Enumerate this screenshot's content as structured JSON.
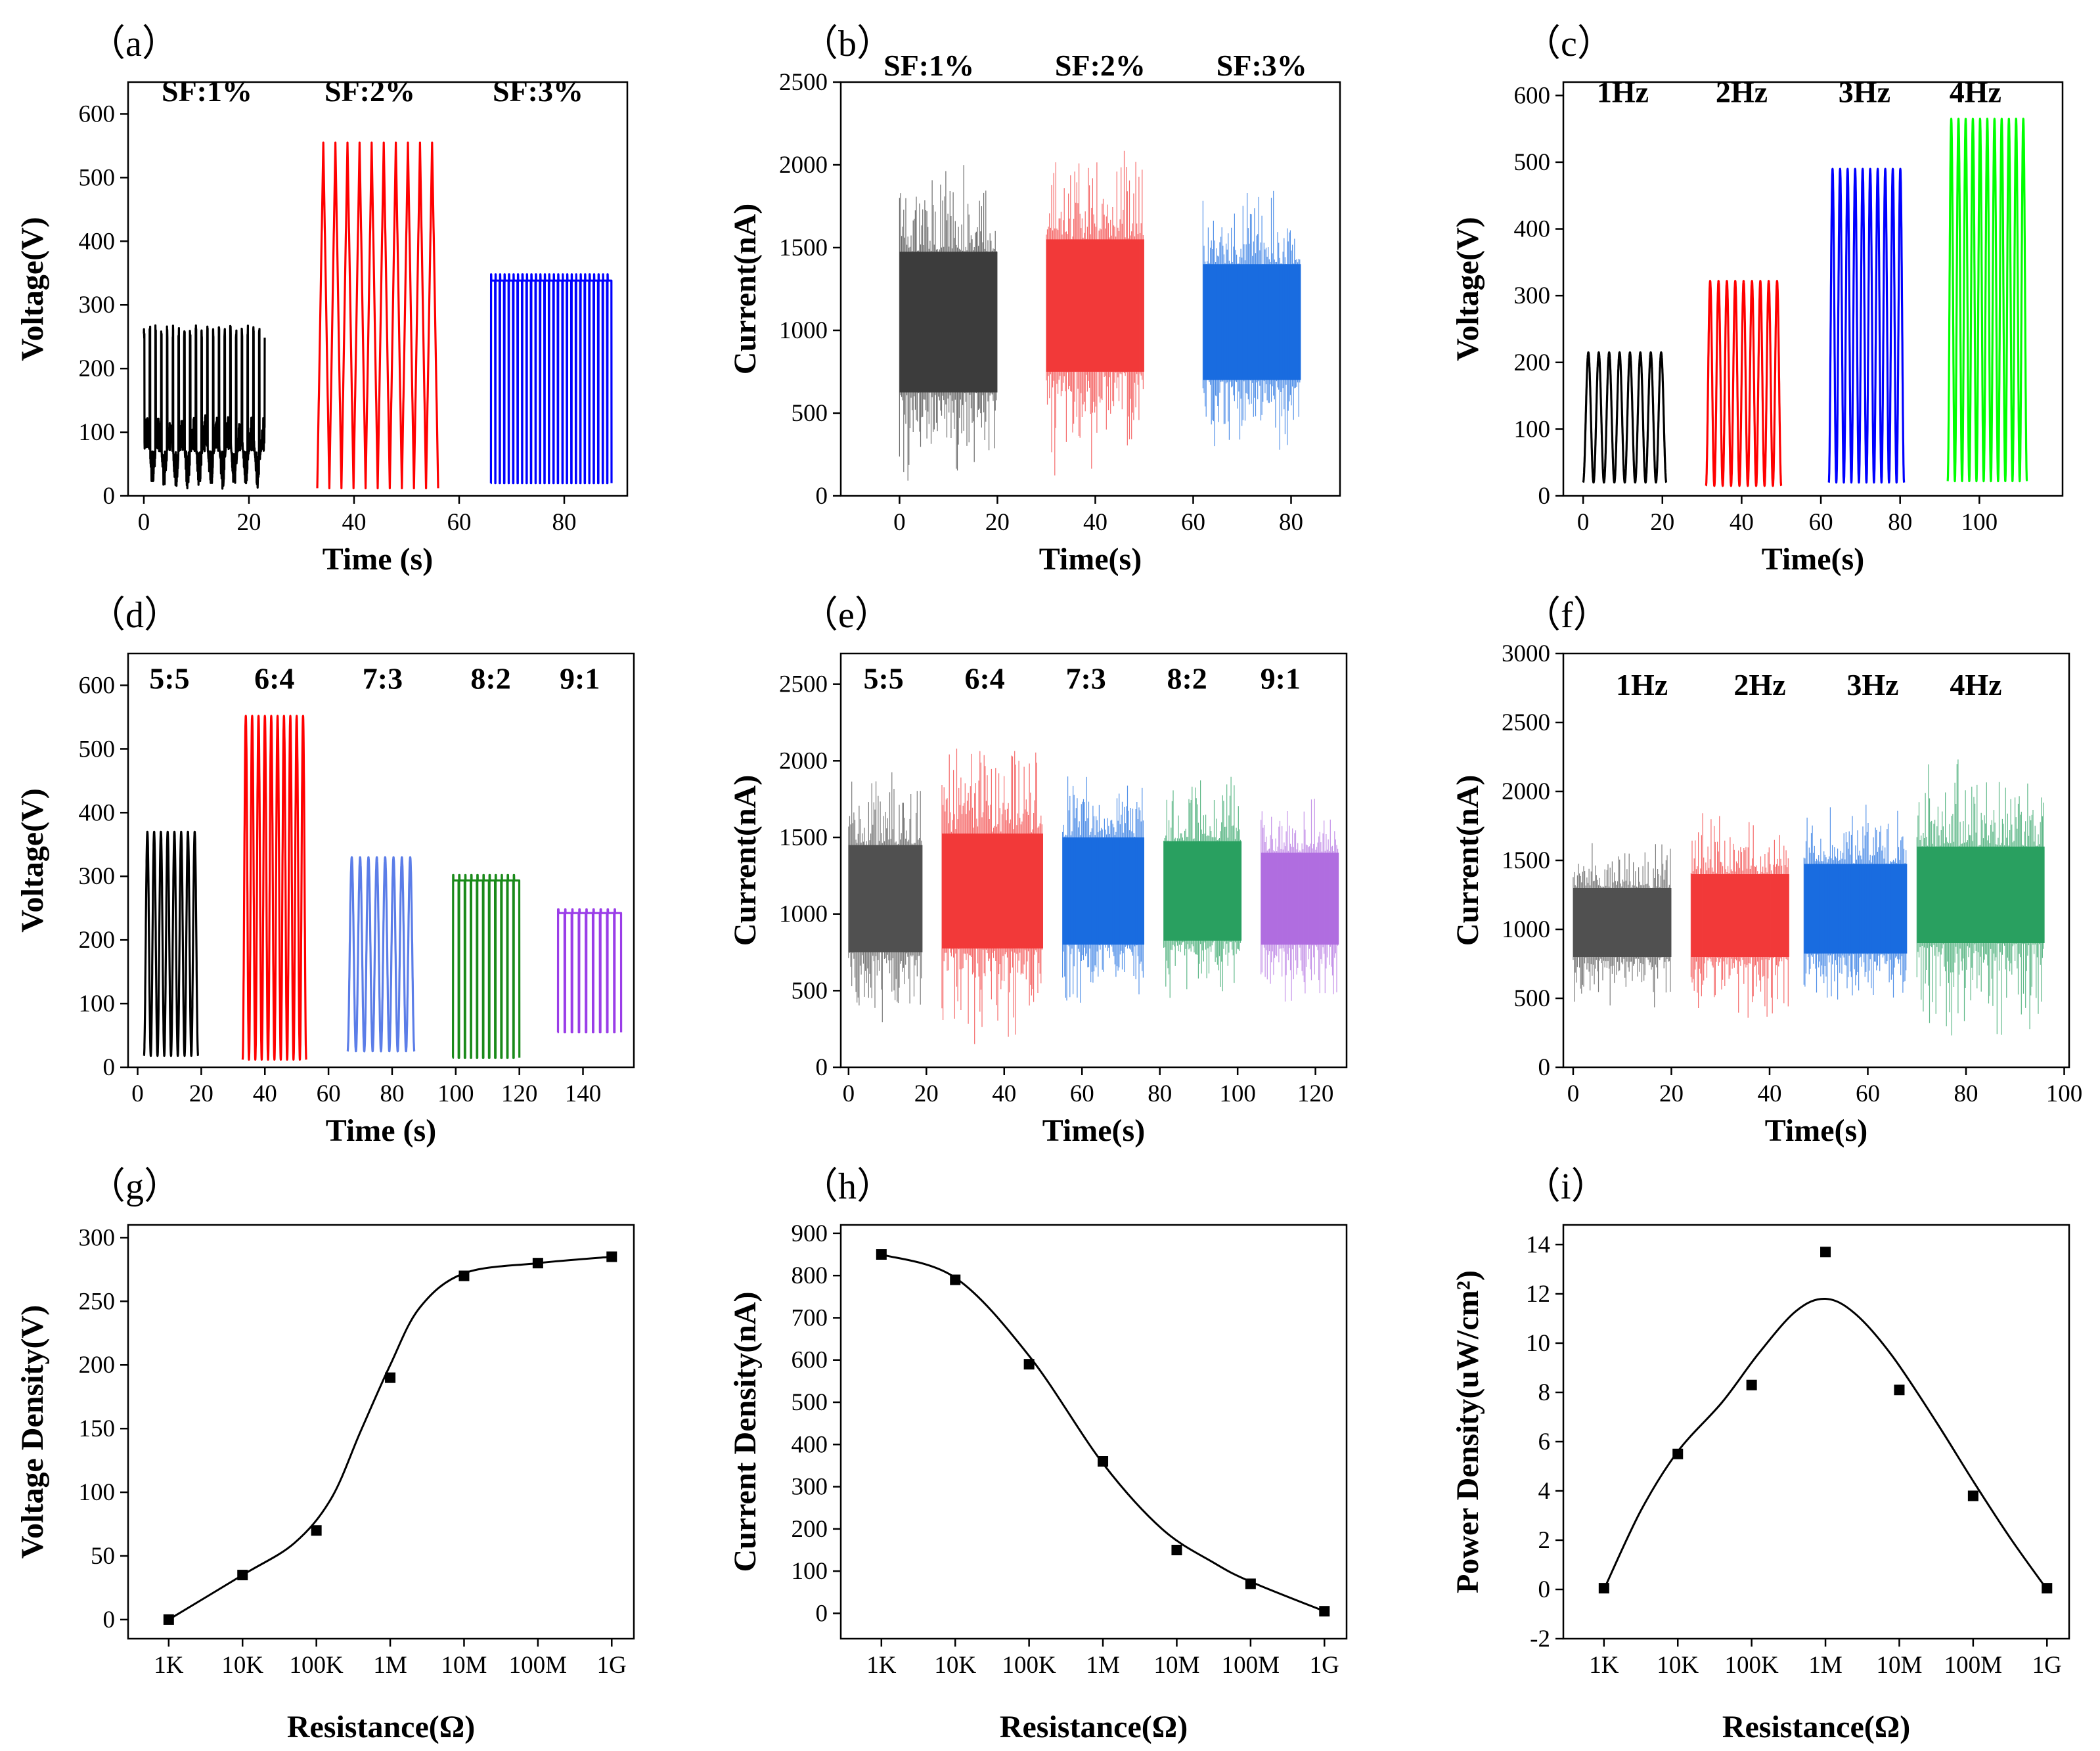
{
  "figure": {
    "panel_count": 9
  },
  "chart_data": [
    {
      "id": "a",
      "panel_label": "（a）",
      "type": "line",
      "xlabel": "Time (s)",
      "ylabel": "Voltage(V)",
      "xlim": [
        -3,
        92
      ],
      "ylim": [
        0,
        650
      ],
      "xticks": [
        0,
        20,
        40,
        60,
        80
      ],
      "yticks": [
        0,
        100,
        200,
        300,
        400,
        500,
        600
      ],
      "annotations": [
        {
          "text": "SF:1%",
          "x": 12,
          "y": 620
        },
        {
          "text": "SF:2%",
          "x": 43,
          "y": 620
        },
        {
          "text": "SF:3%",
          "x": 75,
          "y": 620
        }
      ],
      "series": [
        {
          "name": "SF:1%",
          "color": "#000000",
          "x_start": 0,
          "x_end": 23,
          "peak": 268,
          "base": 30,
          "cycles": 21,
          "style": "noisy_pulse"
        },
        {
          "name": "SF:2%",
          "color": "#ff0000",
          "x_start": 33,
          "x_end": 56,
          "peak": 555,
          "base": 12,
          "cycles": 10,
          "style": "triangle"
        },
        {
          "name": "SF:3%",
          "color": "#0000ff",
          "x_start": 66,
          "x_end": 89,
          "peak": 348,
          "base": 20,
          "cycles": 27,
          "style": "pulse"
        }
      ]
    },
    {
      "id": "b",
      "panel_label": "（b）",
      "type": "line",
      "xlabel": "Time(s)",
      "ylabel": "Current(nA)",
      "xlim": [
        -12,
        90
      ],
      "ylim": [
        0,
        2500
      ],
      "xticks": [
        0,
        20,
        40,
        60,
        80
      ],
      "yticks": [
        0,
        500,
        1000,
        1500,
        2000,
        2500
      ],
      "annotations": [
        {
          "text": "SF:1%",
          "x": 6,
          "y": 2540
        },
        {
          "text": "SF:2%",
          "x": 41,
          "y": 2540
        },
        {
          "text": "SF:3%",
          "x": 74,
          "y": 2540
        }
      ],
      "series": [
        {
          "name": "SF:1%",
          "color": "#3c3c3c",
          "x_start": 0,
          "x_end": 20,
          "center": 1050,
          "core": 850,
          "spike": 1000
        },
        {
          "name": "SF:2%",
          "color": "#f23a3a",
          "x_start": 30,
          "x_end": 50,
          "center": 1150,
          "core": 800,
          "spike": 1050
        },
        {
          "name": "SF:3%",
          "color": "#1a6ce0",
          "x_start": 62,
          "x_end": 82,
          "center": 1050,
          "core": 700,
          "spike": 850
        }
      ]
    },
    {
      "id": "c",
      "panel_label": "（c）",
      "type": "line",
      "xlabel": "Time(s)",
      "ylabel": "Voltage(V)",
      "xlim": [
        -5,
        121
      ],
      "ylim": [
        0,
        620
      ],
      "xticks": [
        0,
        20,
        40,
        60,
        80,
        100
      ],
      "yticks": [
        0,
        100,
        200,
        300,
        400,
        500,
        600
      ],
      "annotations": [
        {
          "text": "1Hz",
          "x": 10,
          "y": 590
        },
        {
          "text": "2Hz",
          "x": 40,
          "y": 590
        },
        {
          "text": "3Hz",
          "x": 71,
          "y": 590
        },
        {
          "text": "4Hz",
          "x": 99,
          "y": 590
        }
      ],
      "series": [
        {
          "name": "1Hz",
          "color": "#000000",
          "x_start": 0,
          "x_end": 21,
          "peak": 215,
          "base": 20,
          "cycles": 8,
          "style": "sine"
        },
        {
          "name": "2Hz",
          "color": "#ff0000",
          "x_start": 31,
          "x_end": 50,
          "peak": 322,
          "base": 15,
          "cycles": 9,
          "style": "sine"
        },
        {
          "name": "3Hz",
          "color": "#0000ff",
          "x_start": 62,
          "x_end": 81,
          "peak": 490,
          "base": 20,
          "cycles": 10,
          "style": "sine"
        },
        {
          "name": "4Hz",
          "color": "#00ff00",
          "x_start": 92,
          "x_end": 112,
          "peak": 565,
          "base": 22,
          "cycles": 11,
          "style": "sine"
        }
      ]
    },
    {
      "id": "d",
      "panel_label": "（d）",
      "type": "line",
      "xlabel": "Time (s)",
      "ylabel": "Voltage(V)",
      "xlim": [
        -3,
        156
      ],
      "ylim": [
        0,
        650
      ],
      "xticks": [
        0,
        20,
        40,
        60,
        80,
        100,
        120,
        140
      ],
      "yticks": [
        0,
        100,
        200,
        300,
        400,
        500,
        600
      ],
      "annotations": [
        {
          "text": "5:5",
          "x": 10,
          "y": 595
        },
        {
          "text": "6:4",
          "x": 43,
          "y": 595
        },
        {
          "text": "7:3",
          "x": 77,
          "y": 595
        },
        {
          "text": "8:2",
          "x": 111,
          "y": 595
        },
        {
          "text": "9:1",
          "x": 139,
          "y": 595
        }
      ],
      "series": [
        {
          "name": "5:5",
          "color": "#000000",
          "x_start": 2,
          "x_end": 19,
          "peak": 370,
          "base": 18,
          "cycles": 8,
          "style": "sine"
        },
        {
          "name": "6:4",
          "color": "#ff0000",
          "x_start": 33,
          "x_end": 53,
          "peak": 552,
          "base": 12,
          "cycles": 10,
          "style": "sine"
        },
        {
          "name": "7:3",
          "color": "#5b7de8",
          "x_start": 66,
          "x_end": 87,
          "peak": 330,
          "base": 25,
          "cycles": 8,
          "style": "sine"
        },
        {
          "name": "8:2",
          "color": "#1a8a1a",
          "x_start": 99,
          "x_end": 120,
          "peak": 302,
          "base": 15,
          "cycles": 11,
          "style": "pulse"
        },
        {
          "name": "9:1",
          "color": "#9a3de8",
          "x_start": 132,
          "x_end": 152,
          "peak": 248,
          "base": 55,
          "cycles": 9,
          "style": "pulse"
        }
      ]
    },
    {
      "id": "e",
      "panel_label": "（e）",
      "type": "line",
      "xlabel": "Time(s)",
      "ylabel": "Current(nA)",
      "xlim": [
        -2,
        128
      ],
      "ylim": [
        0,
        2700
      ],
      "xticks": [
        0,
        20,
        40,
        60,
        80,
        100,
        120
      ],
      "yticks": [
        0,
        500,
        1000,
        1500,
        2000,
        2500
      ],
      "annotations": [
        {
          "text": "5:5",
          "x": 9,
          "y": 2470
        },
        {
          "text": "6:4",
          "x": 35,
          "y": 2470
        },
        {
          "text": "7:3",
          "x": 61,
          "y": 2470
        },
        {
          "text": "8:2",
          "x": 87,
          "y": 2470
        },
        {
          "text": "9:1",
          "x": 111,
          "y": 2470
        }
      ],
      "series": [
        {
          "name": "5:5",
          "color": "#505050",
          "x_start": 0,
          "x_end": 19,
          "center": 1100,
          "core": 700,
          "spike": 900
        },
        {
          "name": "6:4",
          "color": "#f23a3a",
          "x_start": 24,
          "x_end": 50,
          "center": 1150,
          "core": 750,
          "spike": 1050
        },
        {
          "name": "7:3",
          "color": "#1a6ce0",
          "x_start": 55,
          "x_end": 76,
          "center": 1150,
          "core": 700,
          "spike": 800
        },
        {
          "name": "8:2",
          "color": "#2aa060",
          "x_start": 81,
          "x_end": 101,
          "center": 1150,
          "core": 650,
          "spike": 800
        },
        {
          "name": "9:1",
          "color": "#b06ee0",
          "x_start": 106,
          "x_end": 126,
          "center": 1100,
          "core": 600,
          "spike": 700
        }
      ]
    },
    {
      "id": "f",
      "panel_label": "（f）",
      "type": "line",
      "xlabel": "Time(s)",
      "ylabel": "Current(nA)",
      "xlim": [
        -2,
        101
      ],
      "ylim": [
        0,
        3000
      ],
      "xticks": [
        0,
        20,
        40,
        60,
        80,
        100
      ],
      "yticks": [
        0,
        500,
        1000,
        1500,
        2000,
        2500,
        3000
      ],
      "annotations": [
        {
          "text": "1Hz",
          "x": 14,
          "y": 2700
        },
        {
          "text": "2Hz",
          "x": 38,
          "y": 2700
        },
        {
          "text": "3Hz",
          "x": 61,
          "y": 2700
        },
        {
          "text": "4Hz",
          "x": 82,
          "y": 2700
        }
      ],
      "series": [
        {
          "name": "1Hz",
          "color": "#505050",
          "x_start": 0,
          "x_end": 20,
          "center": 1050,
          "core": 500,
          "spike": 650
        },
        {
          "name": "2Hz",
          "color": "#f23a3a",
          "x_start": 24,
          "x_end": 44,
          "center": 1100,
          "core": 600,
          "spike": 800
        },
        {
          "name": "3Hz",
          "color": "#1a6ce0",
          "x_start": 47,
          "x_end": 68,
          "center": 1150,
          "core": 650,
          "spike": 800
        },
        {
          "name": "4Hz",
          "color": "#2aa060",
          "x_start": 70,
          "x_end": 96,
          "center": 1250,
          "core": 700,
          "spike": 1100
        }
      ]
    },
    {
      "id": "g",
      "panel_label": "（g）",
      "type": "scatter",
      "xlabel": "Resistance(Ω)",
      "ylabel": "Voltage Density(V)",
      "categories": [
        "1K",
        "10K",
        "100K",
        "1M",
        "10M",
        "100M",
        "1G"
      ],
      "values": [
        0,
        35,
        70,
        190,
        270,
        280,
        285
      ],
      "fit": [
        [
          0,
          0
        ],
        [
          1,
          35
        ],
        [
          1.7,
          60
        ],
        [
          2.2,
          95
        ],
        [
          2.6,
          148
        ],
        [
          3,
          200
        ],
        [
          3.4,
          245
        ],
        [
          4,
          272
        ],
        [
          5,
          280
        ],
        [
          6,
          285
        ]
      ],
      "xlim": [
        -0.55,
        6.3
      ],
      "ylim": [
        -15,
        310
      ],
      "yticks": [
        0,
        50,
        100,
        150,
        200,
        250,
        300
      ]
    },
    {
      "id": "h",
      "panel_label": "（h）",
      "type": "scatter",
      "xlabel": "Resistance(Ω)",
      "ylabel": "Current Density(nA)",
      "categories": [
        "1K",
        "10K",
        "100K",
        "1M",
        "10M",
        "100M",
        "1G"
      ],
      "values": [
        850,
        790,
        590,
        360,
        150,
        70,
        5
      ],
      "fit": [
        [
          0,
          850
        ],
        [
          1,
          795
        ],
        [
          2,
          610
        ],
        [
          3,
          355
        ],
        [
          3.8,
          200
        ],
        [
          4.5,
          120
        ],
        [
          5,
          75
        ],
        [
          6,
          5
        ]
      ],
      "xlim": [
        -0.55,
        6.3
      ],
      "ylim": [
        -60,
        920
      ],
      "yticks": [
        0,
        100,
        200,
        300,
        400,
        500,
        600,
        700,
        800,
        900
      ]
    },
    {
      "id": "i",
      "panel_label": "（i）",
      "type": "scatter",
      "xlabel": "Resistance(Ω)",
      "ylabel": "Power Density(uW/cm²)",
      "categories": [
        "1K",
        "10K",
        "100K",
        "1M",
        "10M",
        "100M",
        "1G"
      ],
      "values": [
        0.05,
        5.5,
        8.3,
        13.7,
        8.1,
        3.8,
        0.05
      ],
      "fit": [
        [
          0,
          0
        ],
        [
          0.5,
          3.2
        ],
        [
          1,
          5.6
        ],
        [
          1.6,
          7.6
        ],
        [
          2.1,
          9.6
        ],
        [
          2.6,
          11.3
        ],
        [
          3,
          11.8
        ],
        [
          3.4,
          11.2
        ],
        [
          3.9,
          9.5
        ],
        [
          4.5,
          6.8
        ],
        [
          5,
          4.4
        ],
        [
          5.5,
          2.1
        ],
        [
          6,
          0
        ]
      ],
      "xlim": [
        -0.55,
        6.3
      ],
      "ylim": [
        -2,
        14.8
      ],
      "yticks": [
        -2,
        0,
        2,
        4,
        6,
        8,
        10,
        12,
        14
      ]
    }
  ]
}
